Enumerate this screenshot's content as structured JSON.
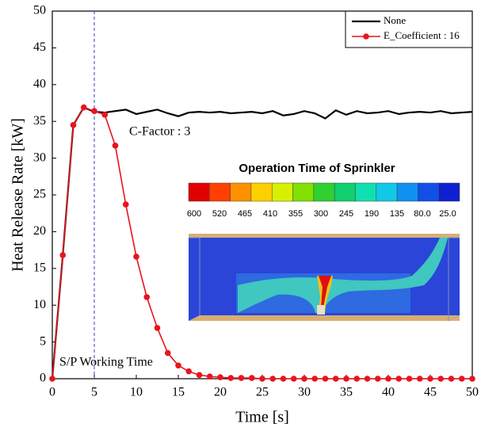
{
  "chart_data": {
    "type": "line",
    "x_label": "Time [s]",
    "y_label": "Heat Release Rate [kW]",
    "x": [
      0,
      1.25,
      2.5,
      3.75,
      5,
      6.25,
      7.5,
      8.75,
      10,
      11.25,
      12.5,
      13.75,
      15,
      16.25,
      17.5,
      18.75,
      20,
      21.25,
      22.5,
      23.75,
      25,
      26.25,
      27.5,
      28.75,
      30,
      31.25,
      32.5,
      33.75,
      35,
      36.25,
      37.5,
      38.75,
      40,
      41.25,
      42.5,
      43.75,
      45,
      46.25,
      47.5,
      48.75,
      50
    ],
    "series": [
      {
        "name": "None",
        "color": "#000000",
        "marker": false,
        "values": [
          0,
          16.8,
          34.5,
          36.9,
          36.3,
          36.2,
          36.4,
          36.6,
          36.0,
          36.3,
          36.6,
          36.1,
          35.7,
          36.2,
          36.3,
          36.2,
          36.3,
          36.1,
          36.2,
          36.3,
          36.1,
          36.4,
          35.8,
          36.0,
          36.4,
          36.1,
          35.4,
          36.5,
          35.9,
          36.4,
          36.1,
          36.2,
          36.4,
          36.0,
          36.2,
          36.3,
          36.2,
          36.4,
          36.1,
          36.2,
          36.3
        ]
      },
      {
        "name": "E_Coefficient : 16",
        "color": "#e8141e",
        "marker": true,
        "values": [
          0,
          16.8,
          34.5,
          36.9,
          36.4,
          35.9,
          31.7,
          23.7,
          16.6,
          11.1,
          6.9,
          3.5,
          1.8,
          1.0,
          0.5,
          0.3,
          0.2,
          0.1,
          0.1,
          0.1,
          0,
          0,
          0,
          0,
          0,
          0,
          0,
          0,
          0,
          0,
          0,
          0,
          0,
          0,
          0,
          0,
          0,
          0,
          0,
          0,
          0
        ]
      }
    ],
    "xlim": [
      0,
      50
    ],
    "ylim": [
      0,
      50
    ],
    "xticks": [
      0,
      5,
      10,
      15,
      20,
      25,
      30,
      35,
      40,
      45,
      50
    ],
    "yticks": [
      0,
      5,
      10,
      15,
      20,
      25,
      30,
      35,
      40,
      45,
      50
    ],
    "grid": false,
    "legend": "upper right",
    "reference_line": {
      "x": 5,
      "color": "#3a3acc"
    },
    "annotations": [
      "C-Factor : 3",
      "S/P Working Time"
    ],
    "inset": {
      "title": "Operation Time of Sprinkler",
      "labels": [
        "600",
        "520",
        "465",
        "410",
        "355",
        "300",
        "245",
        "190",
        "135",
        "80.0",
        "25.0"
      ],
      "colors": [
        "#e00000",
        "#ff4000",
        "#ff9000",
        "#ffd000",
        "#d8f000",
        "#80e000",
        "#30d030",
        "#10d070",
        "#10e0b0",
        "#10c8e8",
        "#1090f0",
        "#1050e8",
        "#1020d0"
      ]
    }
  }
}
